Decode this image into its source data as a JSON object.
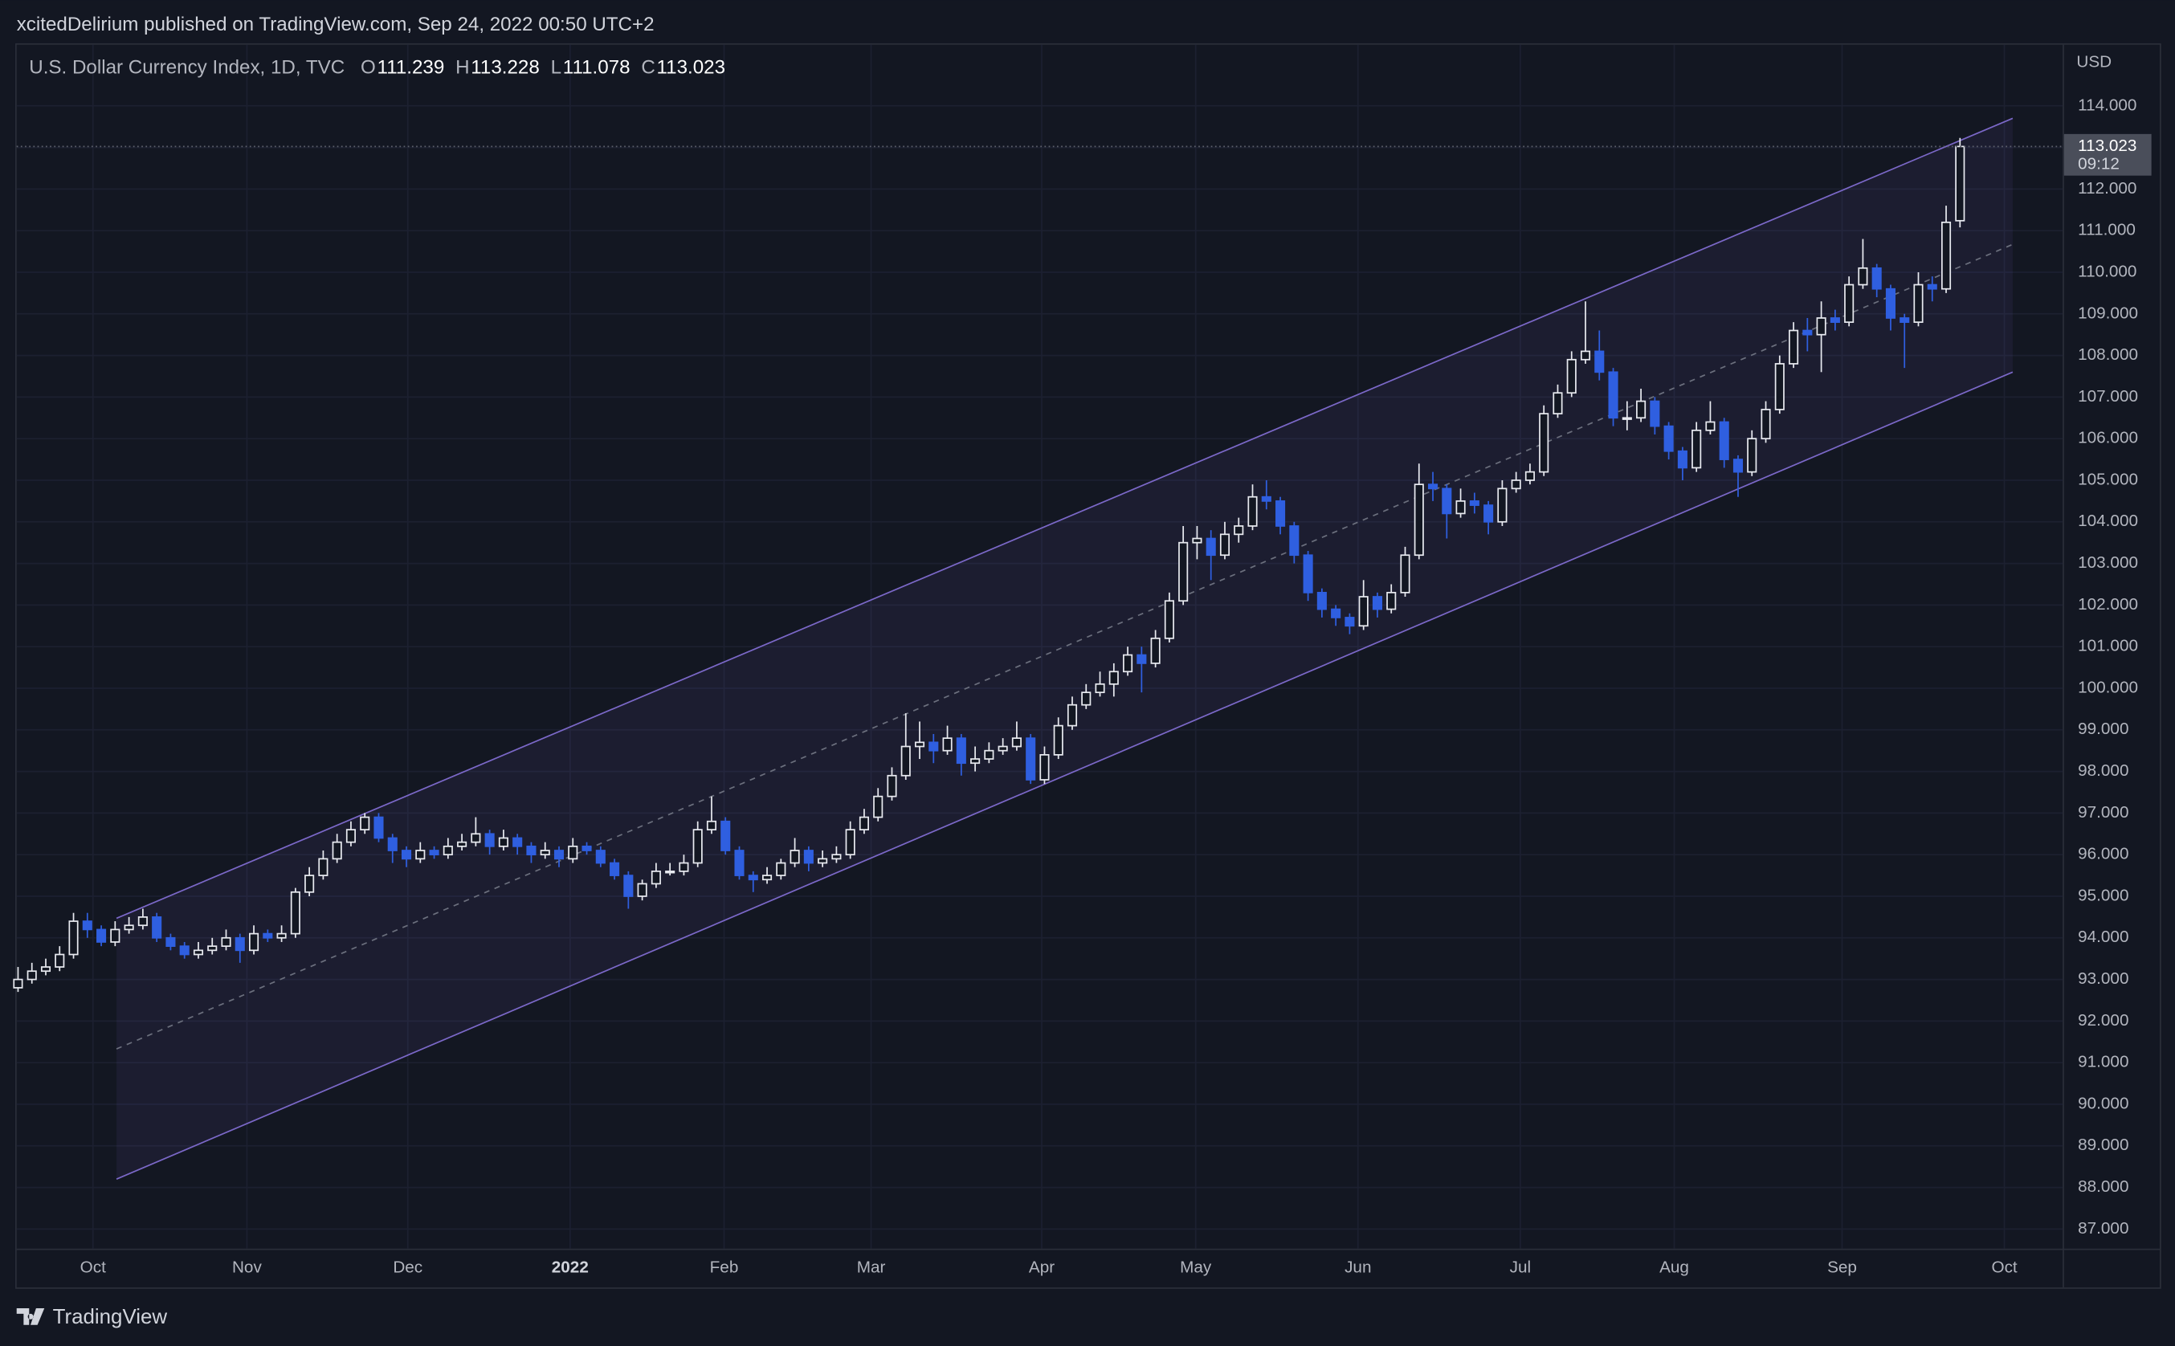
{
  "header": {
    "attribution": "xcitedDelirium published on TradingView.com, Sep 24, 2022 00:50 UTC+2",
    "brand": "TradingView"
  },
  "chart_data": {
    "type": "candlestick",
    "title": "U.S. Dollar Currency Index, 1D, TVC",
    "ohlc_labels": [
      "O",
      "H",
      "L",
      "C"
    ],
    "currency": "USD",
    "countdown": "09:12",
    "up_color": "#e8eaf0",
    "down_color": "#2f5fe0",
    "candles": [
      [
        92.8,
        93.3,
        92.7,
        93.0
      ],
      [
        93.0,
        93.4,
        92.9,
        93.2
      ],
      [
        93.2,
        93.5,
        93.1,
        93.3
      ],
      [
        93.3,
        93.8,
        93.2,
        93.6
      ],
      [
        93.6,
        94.6,
        93.5,
        94.4
      ],
      [
        94.4,
        94.6,
        94.0,
        94.2
      ],
      [
        94.2,
        94.3,
        93.8,
        93.9
      ],
      [
        93.9,
        94.4,
        93.8,
        94.2
      ],
      [
        94.2,
        94.5,
        94.1,
        94.3
      ],
      [
        94.3,
        94.7,
        94.2,
        94.5
      ],
      [
        94.5,
        94.6,
        93.9,
        94.0
      ],
      [
        94.0,
        94.1,
        93.7,
        93.8
      ],
      [
        93.8,
        93.9,
        93.5,
        93.6
      ],
      [
        93.6,
        93.9,
        93.5,
        93.7
      ],
      [
        93.7,
        94.0,
        93.6,
        93.8
      ],
      [
        93.8,
        94.2,
        93.7,
        94.0
      ],
      [
        94.0,
        94.1,
        93.4,
        93.7
      ],
      [
        93.7,
        94.3,
        93.6,
        94.1
      ],
      [
        94.1,
        94.2,
        93.9,
        94.0
      ],
      [
        94.0,
        94.3,
        93.9,
        94.1
      ],
      [
        94.1,
        95.2,
        94.0,
        95.1
      ],
      [
        95.1,
        95.7,
        95.0,
        95.5
      ],
      [
        95.5,
        96.1,
        95.4,
        95.9
      ],
      [
        95.9,
        96.5,
        95.8,
        96.3
      ],
      [
        96.3,
        96.8,
        96.2,
        96.6
      ],
      [
        96.6,
        97.0,
        96.5,
        96.9
      ],
      [
        96.9,
        97.0,
        96.3,
        96.4
      ],
      [
        96.4,
        96.5,
        95.8,
        96.1
      ],
      [
        96.1,
        96.2,
        95.7,
        95.9
      ],
      [
        95.9,
        96.3,
        95.8,
        96.1
      ],
      [
        96.1,
        96.2,
        95.9,
        96.0
      ],
      [
        96.0,
        96.4,
        95.9,
        96.2
      ],
      [
        96.2,
        96.5,
        96.1,
        96.3
      ],
      [
        96.3,
        96.9,
        96.2,
        96.5
      ],
      [
        96.5,
        96.6,
        96.0,
        96.2
      ],
      [
        96.2,
        96.6,
        96.1,
        96.4
      ],
      [
        96.4,
        96.5,
        96.0,
        96.2
      ],
      [
        96.2,
        96.3,
        95.8,
        96.0
      ],
      [
        96.0,
        96.3,
        95.9,
        96.1
      ],
      [
        96.1,
        96.2,
        95.7,
        95.9
      ],
      [
        95.9,
        96.4,
        95.8,
        96.2
      ],
      [
        96.2,
        96.3,
        96.0,
        96.1
      ],
      [
        96.1,
        96.2,
        95.7,
        95.8
      ],
      [
        95.8,
        95.9,
        95.4,
        95.5
      ],
      [
        95.5,
        95.6,
        94.7,
        95.0
      ],
      [
        95.0,
        95.4,
        94.9,
        95.3
      ],
      [
        95.3,
        95.8,
        95.2,
        95.6
      ],
      [
        95.6,
        95.8,
        95.5,
        95.6
      ],
      [
        95.6,
        96.0,
        95.5,
        95.8
      ],
      [
        95.8,
        96.8,
        95.7,
        96.6
      ],
      [
        96.6,
        97.4,
        96.5,
        96.8
      ],
      [
        96.8,
        96.9,
        96.0,
        96.1
      ],
      [
        96.1,
        96.2,
        95.4,
        95.5
      ],
      [
        95.5,
        95.6,
        95.1,
        95.4
      ],
      [
        95.4,
        95.7,
        95.3,
        95.5
      ],
      [
        95.5,
        95.9,
        95.4,
        95.8
      ],
      [
        95.8,
        96.4,
        95.7,
        96.1
      ],
      [
        96.1,
        96.2,
        95.6,
        95.8
      ],
      [
        95.8,
        96.1,
        95.7,
        95.9
      ],
      [
        95.9,
        96.2,
        95.8,
        96.0
      ],
      [
        96.0,
        96.8,
        95.9,
        96.6
      ],
      [
        96.6,
        97.1,
        96.5,
        96.9
      ],
      [
        96.9,
        97.6,
        96.8,
        97.4
      ],
      [
        97.4,
        98.1,
        97.3,
        97.9
      ],
      [
        97.9,
        99.4,
        97.8,
        98.6
      ],
      [
        98.6,
        99.2,
        98.3,
        98.7
      ],
      [
        98.7,
        98.9,
        98.2,
        98.5
      ],
      [
        98.5,
        99.1,
        98.4,
        98.8
      ],
      [
        98.8,
        98.9,
        97.9,
        98.2
      ],
      [
        98.2,
        98.6,
        98.0,
        98.3
      ],
      [
        98.3,
        98.7,
        98.2,
        98.5
      ],
      [
        98.5,
        98.8,
        98.4,
        98.6
      ],
      [
        98.6,
        99.2,
        98.5,
        98.8
      ],
      [
        98.8,
        98.9,
        97.7,
        97.8
      ],
      [
        97.8,
        98.6,
        97.7,
        98.4
      ],
      [
        98.4,
        99.3,
        98.3,
        99.1
      ],
      [
        99.1,
        99.8,
        99.0,
        99.6
      ],
      [
        99.6,
        100.1,
        99.5,
        99.9
      ],
      [
        99.9,
        100.4,
        99.8,
        100.1
      ],
      [
        100.1,
        100.6,
        99.8,
        100.4
      ],
      [
        100.4,
        101.0,
        100.3,
        100.8
      ],
      [
        100.8,
        101.0,
        99.9,
        100.6
      ],
      [
        100.6,
        101.4,
        100.5,
        101.2
      ],
      [
        101.2,
        102.3,
        101.1,
        102.1
      ],
      [
        102.1,
        103.9,
        102.0,
        103.5
      ],
      [
        103.5,
        103.9,
        103.1,
        103.6
      ],
      [
        103.6,
        103.8,
        102.6,
        103.2
      ],
      [
        103.2,
        104.0,
        103.1,
        103.7
      ],
      [
        103.7,
        104.1,
        103.5,
        103.9
      ],
      [
        103.9,
        104.9,
        103.8,
        104.6
      ],
      [
        104.6,
        105.0,
        104.3,
        104.5
      ],
      [
        104.5,
        104.6,
        103.7,
        103.9
      ],
      [
        103.9,
        104.0,
        103.0,
        103.2
      ],
      [
        103.2,
        103.3,
        102.1,
        102.3
      ],
      [
        102.3,
        102.4,
        101.7,
        101.9
      ],
      [
        101.9,
        102.0,
        101.5,
        101.7
      ],
      [
        101.7,
        101.8,
        101.3,
        101.5
      ],
      [
        101.5,
        102.6,
        101.4,
        102.2
      ],
      [
        102.2,
        102.3,
        101.7,
        101.9
      ],
      [
        101.9,
        102.5,
        101.8,
        102.3
      ],
      [
        102.3,
        103.4,
        102.2,
        103.2
      ],
      [
        103.2,
        105.4,
        103.1,
        104.9
      ],
      [
        104.9,
        105.2,
        104.5,
        104.8
      ],
      [
        104.8,
        104.9,
        103.6,
        104.2
      ],
      [
        104.2,
        104.8,
        104.1,
        104.5
      ],
      [
        104.5,
        104.7,
        104.2,
        104.4
      ],
      [
        104.4,
        104.5,
        103.7,
        104.0
      ],
      [
        104.0,
        105.0,
        103.9,
        104.8
      ],
      [
        104.8,
        105.2,
        104.7,
        105.0
      ],
      [
        105.0,
        105.4,
        104.9,
        105.2
      ],
      [
        105.2,
        106.8,
        105.1,
        106.6
      ],
      [
        106.6,
        107.3,
        106.5,
        107.1
      ],
      [
        107.1,
        108.1,
        107.0,
        107.9
      ],
      [
        107.9,
        109.3,
        107.8,
        108.1
      ],
      [
        108.1,
        108.6,
        107.4,
        107.6
      ],
      [
        107.6,
        107.7,
        106.3,
        106.5
      ],
      [
        106.5,
        106.9,
        106.2,
        106.5
      ],
      [
        106.5,
        107.2,
        106.4,
        106.9
      ],
      [
        106.9,
        107.0,
        106.1,
        106.3
      ],
      [
        106.3,
        106.4,
        105.5,
        105.7
      ],
      [
        105.7,
        105.8,
        105.0,
        105.3
      ],
      [
        105.3,
        106.4,
        105.2,
        106.2
      ],
      [
        106.2,
        106.9,
        106.1,
        106.4
      ],
      [
        106.4,
        106.5,
        105.3,
        105.5
      ],
      [
        105.5,
        105.6,
        104.6,
        105.2
      ],
      [
        105.2,
        106.2,
        105.1,
        106.0
      ],
      [
        106.0,
        106.9,
        105.9,
        106.7
      ],
      [
        106.7,
        108.0,
        106.6,
        107.8
      ],
      [
        107.8,
        108.8,
        107.7,
        108.6
      ],
      [
        108.6,
        108.9,
        108.1,
        108.5
      ],
      [
        108.5,
        109.3,
        107.6,
        108.9
      ],
      [
        108.9,
        109.1,
        108.6,
        108.8
      ],
      [
        108.8,
        109.9,
        108.7,
        109.7
      ],
      [
        109.7,
        110.8,
        109.6,
        110.1
      ],
      [
        110.1,
        110.2,
        109.4,
        109.6
      ],
      [
        109.6,
        109.7,
        108.6,
        108.9
      ],
      [
        108.9,
        109.0,
        107.7,
        108.8
      ],
      [
        108.8,
        110.0,
        108.7,
        109.7
      ],
      [
        109.7,
        109.9,
        109.3,
        109.6
      ],
      [
        109.6,
        111.6,
        109.5,
        111.2
      ],
      [
        111.239,
        113.228,
        111.078,
        113.023
      ]
    ],
    "xlim": [
      -0.1,
      147.4
    ],
    "xticks": [
      {
        "value": 5.4,
        "label": "Oct"
      },
      {
        "value": 16.5,
        "label": "Nov"
      },
      {
        "value": 28.1,
        "label": "Dec"
      },
      {
        "value": 39.8,
        "label": "2022"
      },
      {
        "value": 50.9,
        "label": "Feb"
      },
      {
        "value": 61.5,
        "label": "Mar"
      },
      {
        "value": 73.8,
        "label": "Apr"
      },
      {
        "value": 84.9,
        "label": "May"
      },
      {
        "value": 96.6,
        "label": "Jun"
      },
      {
        "value": 108.3,
        "label": "Jul"
      },
      {
        "value": 119.4,
        "label": "Aug"
      },
      {
        "value": 131.5,
        "label": "Sep"
      },
      {
        "value": 143.2,
        "label": "Oct"
      }
    ],
    "ylim": [
      86.53,
      115.47
    ],
    "yticks": [
      {
        "value": 114,
        "label": "114.000"
      },
      {
        "value": 113,
        "label": "113.000"
      },
      {
        "value": 112,
        "label": "112.000"
      },
      {
        "value": 111,
        "label": "111.000"
      },
      {
        "value": 110,
        "label": "110.000"
      },
      {
        "value": 109,
        "label": "109.000"
      },
      {
        "value": 108,
        "label": "108.000"
      },
      {
        "value": 107,
        "label": "107.000"
      },
      {
        "value": 106,
        "label": "106.000"
      },
      {
        "value": 105,
        "label": "105.000"
      },
      {
        "value": 104,
        "label": "104.000"
      },
      {
        "value": 103,
        "label": "103.000"
      },
      {
        "value": 102,
        "label": "102.000"
      },
      {
        "value": 101,
        "label": "101.000"
      },
      {
        "value": 100,
        "label": "100.000"
      },
      {
        "value": 99,
        "label": "99.000"
      },
      {
        "value": 98,
        "label": "98.000"
      },
      {
        "value": 97,
        "label": "97.000"
      },
      {
        "value": 96,
        "label": "96.000"
      },
      {
        "value": 95,
        "label": "95.000"
      },
      {
        "value": 94,
        "label": "94.000"
      },
      {
        "value": 93,
        "label": "93.000"
      },
      {
        "value": 92,
        "label": "92.000"
      },
      {
        "value": 91,
        "label": "91.000"
      },
      {
        "value": 90,
        "label": "90.000"
      },
      {
        "value": 89,
        "label": "89.000"
      },
      {
        "value": 88,
        "label": "88.000"
      },
      {
        "value": 87,
        "label": "87.000"
      }
    ],
    "grid": true,
    "channel": {
      "x": [
        7.1,
        143.8
      ],
      "upper": [
        94.47,
        113.7
      ],
      "mid": [
        91.33,
        110.67
      ],
      "lower": [
        88.2,
        107.6
      ]
    },
    "channel_color": "#7b68c8"
  }
}
